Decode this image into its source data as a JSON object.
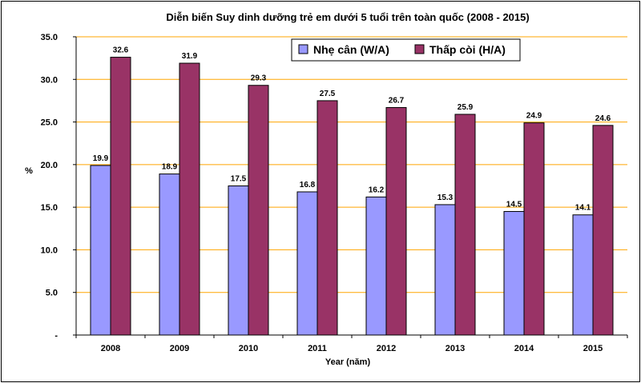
{
  "chart_data": {
    "type": "bar",
    "title": "Diễn biến Suy dinh dưỡng trẻ em dưới 5 tuổi trên toàn quốc (2008 - 2015)",
    "xlabel": "Year (năm)",
    "ylabel": "%",
    "categories": [
      "2008",
      "2009",
      "2010",
      "2011",
      "2012",
      "2013",
      "2014",
      "2015"
    ],
    "ylim": [
      0,
      35
    ],
    "yticks": [
      0,
      5,
      10,
      15,
      20,
      25,
      30,
      35
    ],
    "ytick_labels": [
      "-",
      "5.0",
      "10.0",
      "15.0",
      "20.0",
      "25.0",
      "30.0",
      "35.0"
    ],
    "grid": true,
    "legend_position": "top-right",
    "series": [
      {
        "name": "Nhẹ cân (W/A)",
        "color": "#9999FF",
        "values": [
          19.9,
          18.9,
          17.5,
          16.8,
          16.2,
          15.3,
          14.5,
          14.1
        ],
        "labels": [
          "19.9",
          "18.9",
          "17.5",
          "16.8",
          "16.2",
          "15.3",
          "14.5",
          "14.1"
        ]
      },
      {
        "name": "Thấp còi (H/A)",
        "color": "#993366",
        "values": [
          32.6,
          31.9,
          29.3,
          27.5,
          26.7,
          25.9,
          24.9,
          24.6
        ],
        "labels": [
          "32.6",
          "31.9",
          "29.3",
          "27.5",
          "26.7",
          "25.9",
          "24.9",
          "24.6"
        ]
      }
    ],
    "gridline_color": "#FFA500"
  }
}
